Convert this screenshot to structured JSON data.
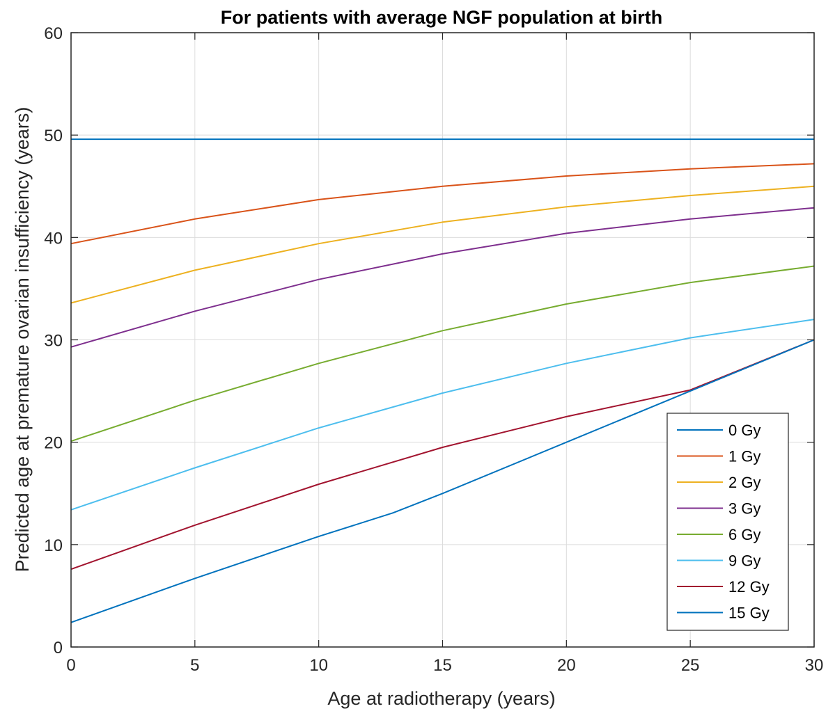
{
  "chart_data": {
    "type": "line",
    "title": "For patients with average NGF population at birth",
    "xlabel": "Age at radiotherapy (years)",
    "ylabel": "Predicted age at premature ovarian insufficiency (years)",
    "xlim": [
      0,
      30
    ],
    "ylim": [
      0,
      60
    ],
    "xticks": [
      "0",
      "5",
      "10",
      "15",
      "20",
      "25",
      "30"
    ],
    "yticks": [
      "0",
      "10",
      "20",
      "30",
      "40",
      "50",
      "60"
    ],
    "grid": true,
    "legend_position": "bottom-right",
    "series": [
      {
        "name": "0 Gy",
        "color": "#0072BD",
        "x": [
          0,
          5,
          10,
          15,
          20,
          25,
          30
        ],
        "y": [
          49.6,
          49.6,
          49.6,
          49.6,
          49.6,
          49.6,
          49.6
        ]
      },
      {
        "name": "1 Gy",
        "color": "#D95319",
        "x": [
          0,
          5,
          10,
          15,
          20,
          25,
          30
        ],
        "y": [
          39.4,
          41.8,
          43.7,
          45.0,
          46.0,
          46.7,
          47.2
        ]
      },
      {
        "name": "2 Gy",
        "color": "#EDB120",
        "x": [
          0,
          5,
          10,
          15,
          20,
          25,
          30
        ],
        "y": [
          33.6,
          36.8,
          39.4,
          41.5,
          43.0,
          44.1,
          45.0
        ]
      },
      {
        "name": "3 Gy",
        "color": "#7E2F8E",
        "x": [
          0,
          5,
          10,
          15,
          20,
          25,
          30
        ],
        "y": [
          29.3,
          32.8,
          35.9,
          38.4,
          40.4,
          41.8,
          42.9
        ]
      },
      {
        "name": "6 Gy",
        "color": "#77AC30",
        "x": [
          0,
          5,
          10,
          15,
          20,
          25,
          30
        ],
        "y": [
          20.1,
          24.1,
          27.7,
          30.9,
          33.5,
          35.6,
          37.2
        ]
      },
      {
        "name": "9 Gy",
        "color": "#4DBEEE",
        "x": [
          0,
          5,
          10,
          15,
          20,
          25,
          30
        ],
        "y": [
          13.4,
          17.5,
          21.4,
          24.8,
          27.7,
          30.2,
          32.0
        ]
      },
      {
        "name": "12 Gy",
        "color": "#A2142F",
        "x": [
          0,
          5,
          10,
          15,
          20,
          25,
          30
        ],
        "y": [
          7.6,
          11.9,
          15.9,
          19.5,
          22.5,
          25.1,
          30.0
        ]
      },
      {
        "name": "15 Gy",
        "color": "#0072BD",
        "x": [
          0,
          5,
          10,
          13,
          15,
          20,
          25,
          30
        ],
        "y": [
          2.4,
          6.7,
          10.8,
          13.1,
          15.0,
          20.0,
          25.0,
          30.0
        ]
      }
    ]
  }
}
